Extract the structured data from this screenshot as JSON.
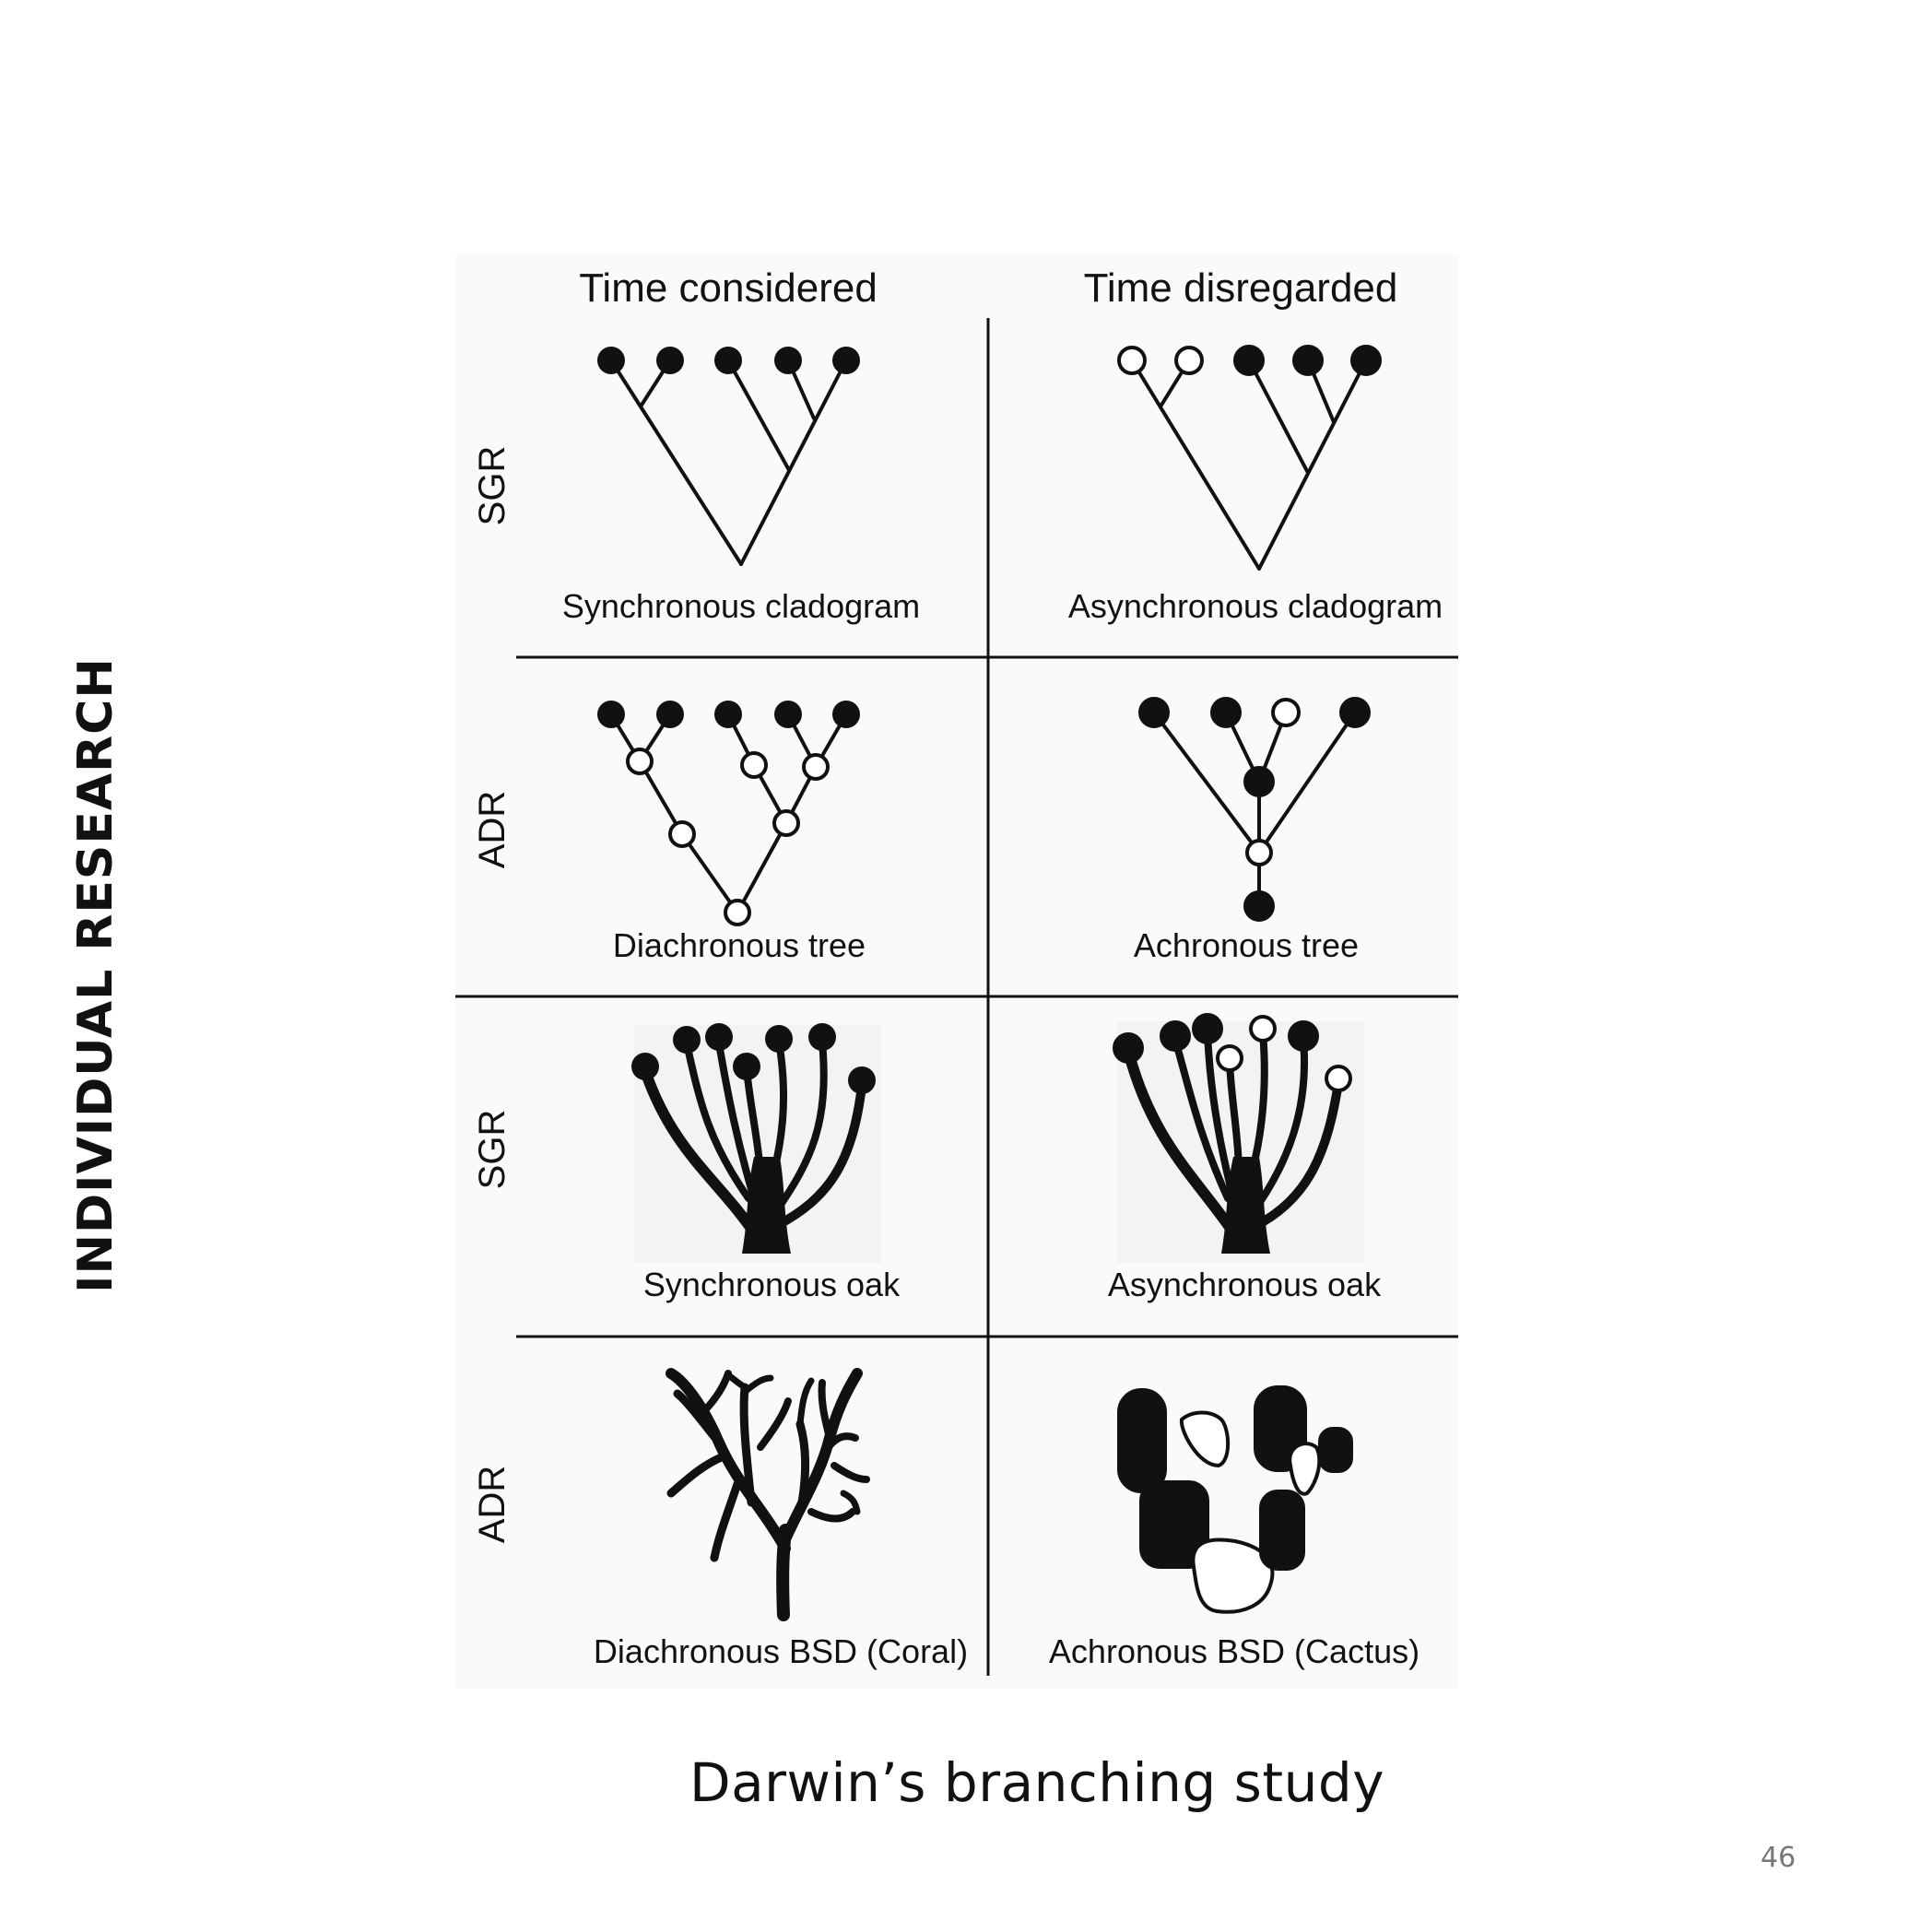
{
  "slide": {
    "side_title": "INDIVIDUAL RESEARCH",
    "caption": "Darwin’s branching study",
    "page_number": "46"
  },
  "figure": {
    "columns": [
      "Time considered",
      "Time disregarded"
    ],
    "rows": [
      "SGR",
      "ADR",
      "SGR",
      "ADR"
    ],
    "captions": {
      "synchronous_cladogram": "Synchronous cladogram",
      "asynchronous_cladogram": "Asynchronous cladogram",
      "diachronous_tree": "Diachronous tree",
      "achronous_tree": "Achronous tree",
      "synchronous_oak": "Synchronous oak",
      "asynchronous_oak": "Asynchronous oak",
      "diachronous_coral": "Diachronous BSD (Coral)",
      "achronous_cactus": "Achronous BSD (Cactus)"
    }
  }
}
